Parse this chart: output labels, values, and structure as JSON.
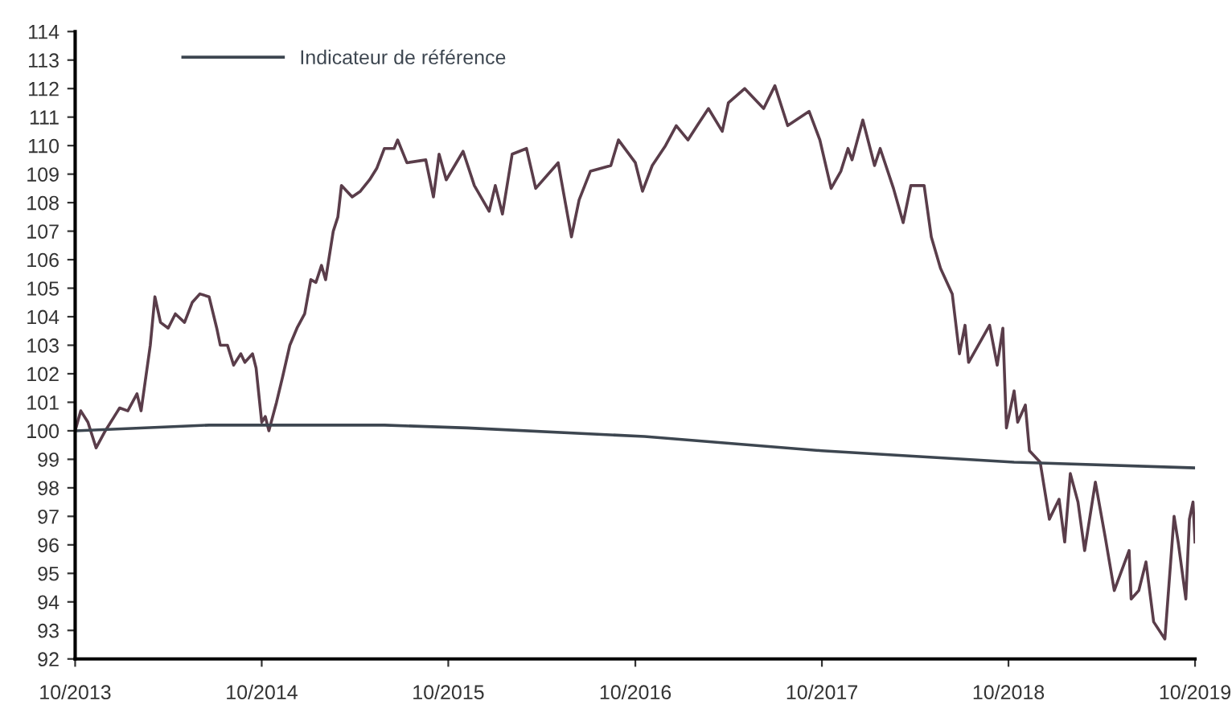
{
  "chart_data": {
    "type": "line",
    "xlim": [
      "2013-10-01",
      "2019-10-01"
    ],
    "ylim": [
      92,
      114
    ],
    "xticks": [
      {
        "value": "2013-10",
        "label": "10/2013"
      },
      {
        "value": "2014-10",
        "label": "10/2014"
      },
      {
        "value": "2015-10",
        "label": "10/2015"
      },
      {
        "value": "2016-10",
        "label": "10/2016"
      },
      {
        "value": "2017-10",
        "label": "10/2017"
      },
      {
        "value": "2018-10",
        "label": "10/2018"
      },
      {
        "value": "2019-10",
        "label": "10/2019"
      }
    ],
    "yticks": [
      92,
      93,
      94,
      95,
      96,
      97,
      98,
      99,
      100,
      101,
      102,
      103,
      104,
      105,
      106,
      107,
      108,
      109,
      110,
      111,
      112,
      113,
      114
    ],
    "grid": false,
    "legend": "top left",
    "marker": "none",
    "line_style": "solid",
    "series": [
      {
        "color": "#5a3d4a",
        "x": [
          "2013-10-01",
          "2013-10-12",
          "2013-10-26",
          "2013-11-11",
          "2013-11-29",
          "2013-12-20",
          "2013-12-27",
          "2014-01-12",
          "2014-01-30",
          "2014-02-07",
          "2014-02-25",
          "2014-03-06",
          "2014-03-17",
          "2014-04-01",
          "2014-04-15",
          "2014-05-03",
          "2014-05-18",
          "2014-06-02",
          "2014-06-20",
          "2014-07-05",
          "2014-07-12",
          "2014-07-26",
          "2014-08-07",
          "2014-08-21",
          "2014-08-29",
          "2014-09-13",
          "2014-09-20",
          "2014-10-01",
          "2014-10-08",
          "2014-10-15",
          "2014-10-30",
          "2014-11-11",
          "2014-11-25",
          "2014-12-09",
          "2014-12-24",
          "2015-01-05",
          "2015-01-15",
          "2015-01-26",
          "2015-02-03",
          "2015-02-18",
          "2015-02-27",
          "2015-03-06",
          "2015-03-27",
          "2015-04-12",
          "2015-04-30",
          "2015-05-14",
          "2015-05-29",
          "2015-06-17",
          "2015-06-24",
          "2015-07-12",
          "2015-08-18",
          "2015-09-02",
          "2015-09-13",
          "2015-09-27",
          "2015-10-30",
          "2015-11-21",
          "2015-12-20",
          "2016-01-01",
          "2016-01-15",
          "2016-02-03",
          "2016-03-02",
          "2016-03-20",
          "2016-05-03",
          "2016-05-29",
          "2016-06-13",
          "2016-07-05",
          "2016-08-14",
          "2016-08-29",
          "2016-10-01",
          "2016-10-15",
          "2016-11-03",
          "2016-11-29",
          "2016-12-20",
          "2017-01-12",
          "2017-01-30",
          "2017-02-21",
          "2017-03-20",
          "2017-04-01",
          "2017-05-03",
          "2017-06-09",
          "2017-07-01",
          "2017-07-26",
          "2017-09-06",
          "2017-09-27",
          "2017-10-19",
          "2017-11-07",
          "2017-11-21",
          "2017-11-29",
          "2017-12-20",
          "2018-01-12",
          "2018-01-23",
          "2018-02-18",
          "2018-03-09",
          "2018-03-24",
          "2018-04-19",
          "2018-05-03",
          "2018-05-21",
          "2018-06-13",
          "2018-06-27",
          "2018-07-08",
          "2018-07-15",
          "2018-08-25",
          "2018-09-09",
          "2018-09-20",
          "2018-09-27",
          "2018-10-12",
          "2018-10-19",
          "2018-11-03",
          "2018-11-11",
          "2018-12-02",
          "2018-12-20",
          "2019-01-08",
          "2019-01-19",
          "2019-01-30",
          "2019-02-14",
          "2019-02-27",
          "2019-03-20",
          "2019-04-08",
          "2019-04-26",
          "2019-05-25",
          "2019-05-29",
          "2019-06-13",
          "2019-06-27",
          "2019-07-12",
          "2019-08-03",
          "2019-08-21",
          "2019-08-29",
          "2019-09-13",
          "2019-09-20",
          "2019-09-27",
          "2019-10-01"
        ],
        "values": [
          100.0,
          100.7,
          100.3,
          99.4,
          100.0,
          100.6,
          100.8,
          100.7,
          101.3,
          100.7,
          103.0,
          104.7,
          103.8,
          103.6,
          104.1,
          103.8,
          104.5,
          104.8,
          104.7,
          103.6,
          103.0,
          103.0,
          102.3,
          102.7,
          102.4,
          102.7,
          102.2,
          100.3,
          100.5,
          100.0,
          101.0,
          101.9,
          103.0,
          103.6,
          104.1,
          105.3,
          105.2,
          105.8,
          105.3,
          107.0,
          107.5,
          108.6,
          108.2,
          108.4,
          108.8,
          109.2,
          109.9,
          109.9,
          110.2,
          109.4,
          109.5,
          108.2,
          109.7,
          108.8,
          109.8,
          108.6,
          107.7,
          108.6,
          107.6,
          109.7,
          109.9,
          108.5,
          109.4,
          106.8,
          108.1,
          109.1,
          109.3,
          110.2,
          109.4,
          108.4,
          109.3,
          110.0,
          110.7,
          110.2,
          110.7,
          111.3,
          110.5,
          111.5,
          112.0,
          111.3,
          112.1,
          110.7,
          111.2,
          110.2,
          108.5,
          109.1,
          109.9,
          109.5,
          110.9,
          109.3,
          109.9,
          108.5,
          107.3,
          108.6,
          108.6,
          106.8,
          105.7,
          104.8,
          102.7,
          103.7,
          102.4,
          103.7,
          102.3,
          103.6,
          100.1,
          101.4,
          100.3,
          100.9,
          99.3,
          98.9,
          96.9,
          97.6,
          96.1,
          98.5,
          97.5,
          95.8,
          98.2,
          96.3,
          94.4,
          95.8,
          94.1,
          94.4,
          95.4,
          93.3,
          92.7,
          97.0,
          96.1,
          94.1,
          96.9,
          97.5,
          96.1
        ]
      },
      {
        "name": "Indicateur de référence",
        "color": "#3d4650",
        "x": [
          "2013-10-01",
          "2014-06-20",
          "2015-05-29",
          "2015-11-07",
          "2016-10-19",
          "2017-10-01",
          "2018-10-12",
          "2019-10-01"
        ],
        "values": [
          100.0,
          100.2,
          100.2,
          100.1,
          99.8,
          99.3,
          98.9,
          98.7
        ]
      }
    ]
  }
}
